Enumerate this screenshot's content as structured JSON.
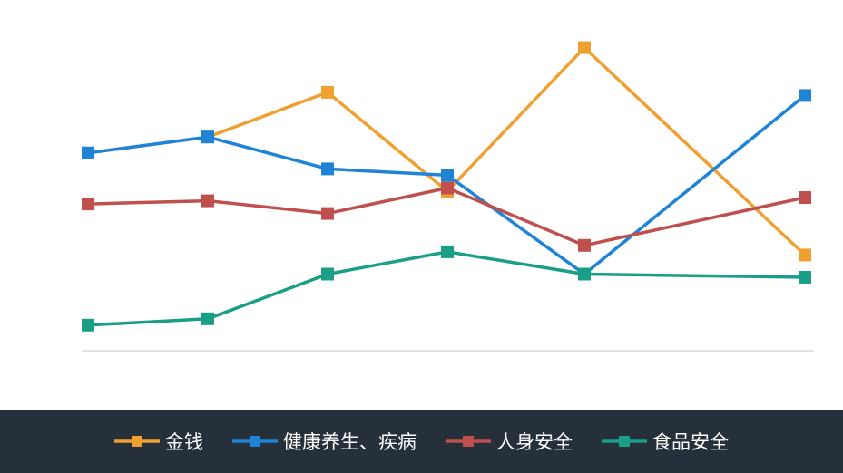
{
  "chart_data": {
    "type": "line",
    "categories": [
      "",
      "",
      "",
      "",
      "",
      ""
    ],
    "ylim": [
      0,
      100
    ],
    "grid": false,
    "legend_position": "bottom",
    "series": [
      {
        "name": "金钱",
        "color": "#f0a030",
        "values": [
          62,
          67,
          81,
          50,
          95,
          30
        ]
      },
      {
        "name": "健康养生、疾病",
        "color": "#1f84d6",
        "values": [
          62,
          67,
          57,
          55,
          24,
          80
        ]
      },
      {
        "name": "人身安全",
        "color": "#c0504d",
        "values": [
          46,
          47,
          43,
          51,
          33,
          48
        ]
      },
      {
        "name": "食品安全",
        "color": "#1a9e86",
        "values": [
          8,
          10,
          24,
          31,
          24,
          23
        ]
      }
    ]
  }
}
